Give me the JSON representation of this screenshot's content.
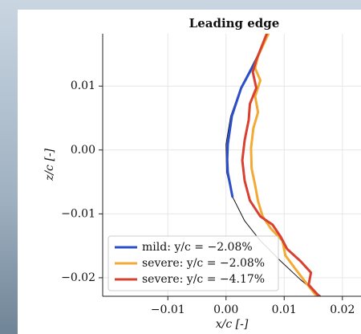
{
  "chart_data": {
    "type": "line",
    "title": "Leading edge",
    "x_label": "x/c [-]",
    "y_label": "z/c [-]",
    "xlim": [
      -0.0212,
      0.0232
    ],
    "ylim": [
      -0.0229,
      0.0182
    ],
    "xticks": [
      {
        "value": -0.01,
        "label": "−0.01"
      },
      {
        "value": 0,
        "label": "0.00"
      },
      0.01,
      0.02
    ],
    "yticks": [
      0.01,
      {
        "value": 0,
        "label": "0.00"
      },
      {
        "value": -0.01,
        "label": "−0.01"
      },
      {
        "value": -0.02,
        "label": "−0.02"
      }
    ],
    "grid": true,
    "legend": "lower left",
    "series": [
      {
        "color": "#111111",
        "x": [
          0.0073,
          0.005,
          0.0025,
          0.0008,
          0.0,
          0.0001,
          0.0011,
          0.0032,
          0.0059,
          0.0094,
          0.0128,
          0.0163
        ],
        "y": [
          0.0182,
          0.0141,
          0.0097,
          0.0053,
          0.0009,
          -0.0035,
          -0.0073,
          -0.0111,
          -0.0142,
          -0.0174,
          -0.0203,
          -0.0229
        ]
      },
      {
        "name": "mild: y/c = −2.08%",
        "color": "#2b4fc9",
        "x": [
          0.0072,
          0.0052,
          0.0026,
          0.001,
          0.0003,
          0.0002,
          0.0003,
          0.0011
        ],
        "y": [
          0.0182,
          0.0141,
          0.0097,
          0.0053,
          0.0009,
          -0.0015,
          -0.0035,
          -0.0073
        ]
      },
      {
        "name": "severe: y/c = −2.08%",
        "color": "#f2a935",
        "x": [
          0.0073,
          0.0055,
          0.005,
          0.0059,
          0.005,
          0.0055,
          0.0047,
          0.0043,
          0.0044,
          0.005,
          0.0055,
          0.0063,
          0.0077,
          0.0097,
          0.0102,
          0.0119,
          0.0135,
          0.0156
        ],
        "y": [
          0.0182,
          0.0147,
          0.0128,
          0.0109,
          0.0084,
          0.0059,
          0.0034,
          0.0003,
          -0.0029,
          -0.0055,
          -0.008,
          -0.0104,
          -0.0123,
          -0.0142,
          -0.0165,
          -0.0186,
          -0.0205,
          -0.0229
        ]
      },
      {
        "name": "severe: y/c = −4.17%",
        "color": "#d8412f",
        "x": [
          0.007,
          0.0052,
          0.0046,
          0.0052,
          0.0041,
          0.0039,
          0.0032,
          0.0028,
          0.0032,
          0.0041,
          0.0059,
          0.008,
          0.0094,
          0.0105,
          0.0128,
          0.0146,
          0.0142,
          0.016
        ],
        "y": [
          0.0182,
          0.0141,
          0.0122,
          0.0097,
          0.0072,
          0.0047,
          0.0015,
          -0.0016,
          -0.0048,
          -0.0079,
          -0.0104,
          -0.0117,
          -0.0136,
          -0.0155,
          -0.0174,
          -0.0192,
          -0.0211,
          -0.0229
        ]
      }
    ]
  }
}
